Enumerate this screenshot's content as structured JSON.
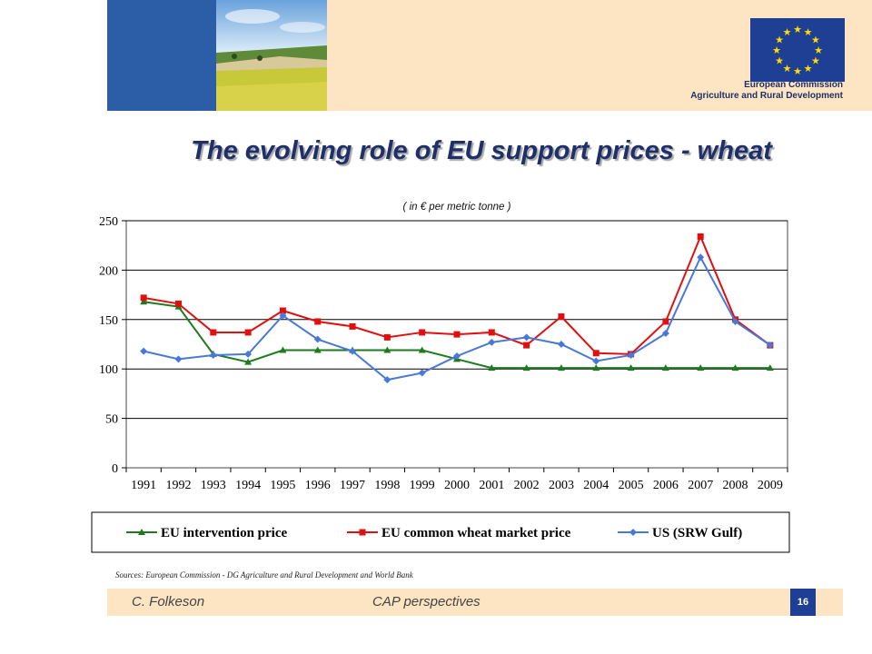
{
  "header": {
    "org_line1": "European Commission",
    "org_line2": "Agriculture and Rural Development",
    "colors": {
      "band": "#fde5c4",
      "blue": "#2c5ea8",
      "flag": "#1f3f94",
      "star": "#ffdd00"
    }
  },
  "slide": {
    "title": "The evolving role of EU support prices - wheat",
    "source": "Sources: European Commission - DG Agriculture and Rural Development and World Bank",
    "footer_author": "C. Folkeson",
    "footer_center": "CAP perspectives",
    "page_number": "16"
  },
  "chart_data": {
    "type": "line",
    "subtitle": "( in € per metric tonne )",
    "categories": [
      "1991",
      "1992",
      "1993",
      "1994",
      "1995",
      "1996",
      "1997",
      "1998",
      "1999",
      "2000",
      "2001",
      "2002",
      "2003",
      "2004",
      "2005",
      "2006",
      "2007",
      "2008",
      "2009"
    ],
    "ylim": [
      0,
      250
    ],
    "yticks": [
      0,
      50,
      100,
      150,
      200,
      250
    ],
    "grid": true,
    "legend_position": "bottom",
    "series": [
      {
        "name": "EU intervention price",
        "color": "#1e7a1e",
        "marker": "triangle",
        "values": [
          168,
          163,
          115,
          107,
          119,
          119,
          119,
          119,
          119,
          110,
          101,
          101,
          101,
          101,
          101,
          101,
          101,
          101,
          101
        ]
      },
      {
        "name": "EU common wheat market price",
        "color": "#e01010",
        "marker": "square",
        "values": [
          172,
          166,
          137,
          137,
          159,
          148,
          143,
          132,
          137,
          135,
          137,
          124,
          153,
          116,
          115,
          148,
          234,
          150,
          124
        ]
      },
      {
        "name": "US (SRW Gulf)",
        "color": "#4a78d8",
        "marker": "diamond",
        "values": [
          118,
          110,
          114,
          115,
          154,
          130,
          118,
          89,
          96,
          113,
          127,
          132,
          125,
          108,
          114,
          136,
          213,
          148,
          124
        ]
      }
    ]
  }
}
